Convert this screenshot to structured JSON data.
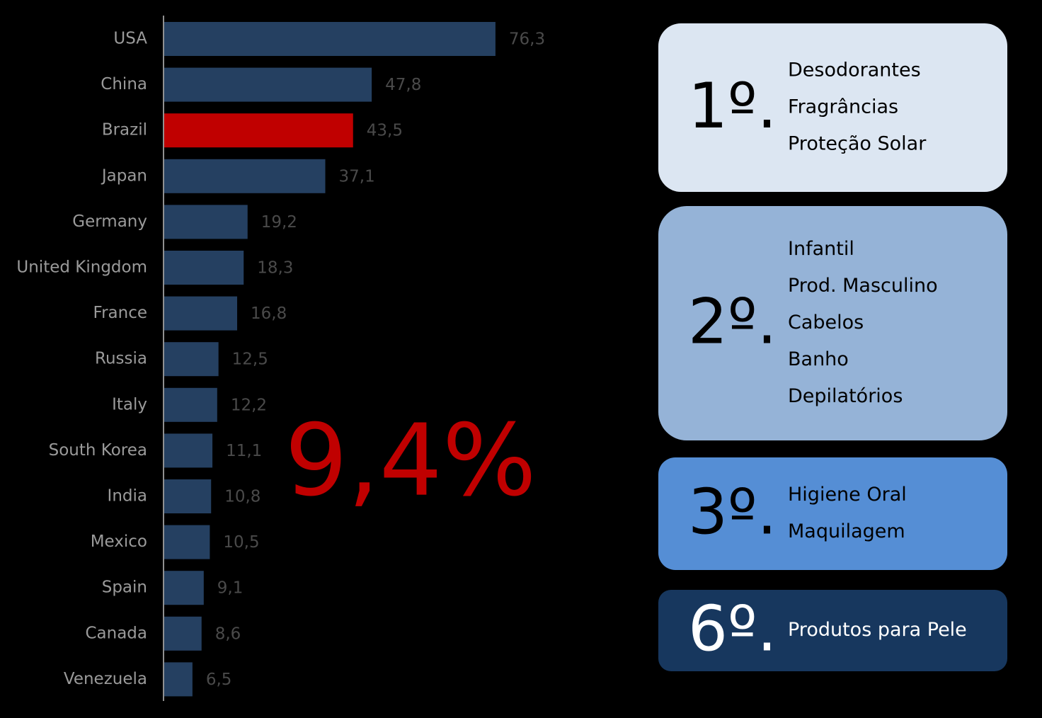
{
  "chart_data": {
    "type": "barh",
    "categories": [
      "USA",
      "China",
      "Brazil",
      "Japan",
      "Germany",
      "United Kingdom",
      "France",
      "Russia",
      "Italy",
      "South Korea",
      "India",
      "Mexico",
      "Spain",
      "Canada",
      "Venezuela"
    ],
    "values": [
      76.3,
      47.8,
      43.5,
      37.1,
      19.2,
      18.3,
      16.8,
      12.5,
      12.2,
      11.1,
      10.8,
      10.5,
      9.1,
      8.6,
      6.5
    ],
    "value_labels": [
      "76,3",
      "47,8",
      "43,5",
      "37,1",
      "19,2",
      "18,3",
      "16,8",
      "12,5",
      "12,2",
      "11,1",
      "10,8",
      "10,5",
      "9,1",
      "8,6",
      "6,5"
    ],
    "colors": [
      "#254061",
      "#254061",
      "#c00000",
      "#254061",
      "#254061",
      "#254061",
      "#254061",
      "#254061",
      "#254061",
      "#254061",
      "#254061",
      "#254061",
      "#254061",
      "#254061",
      "#254061"
    ],
    "xlim": [
      0,
      80
    ],
    "annotation": "9,4%"
  },
  "rankings": [
    {
      "rank": "1º.",
      "items": [
        "Desodorantes",
        "Fragrâncias",
        "Proteção Solar"
      ]
    },
    {
      "rank": "2º.",
      "items": [
        "Infantil",
        "Prod. Masculino",
        "Cabelos",
        "Banho",
        "Depilatórios"
      ]
    },
    {
      "rank": "3º.",
      "items": [
        "Higiene Oral",
        "Maquilagem"
      ]
    },
    {
      "rank": "6º.",
      "items": [
        "Produtos para Pele"
      ]
    }
  ]
}
